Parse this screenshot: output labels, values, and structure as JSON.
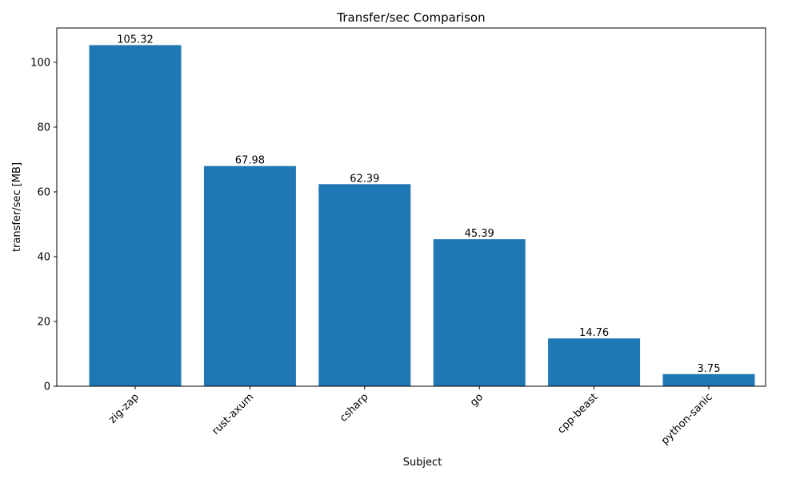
{
  "chart_data": {
    "type": "bar",
    "title": "Transfer/sec Comparison",
    "xlabel": "Subject",
    "ylabel": "transfer/sec [MB]",
    "categories": [
      "zig-zap",
      "rust-axum",
      "csharp",
      "go",
      "cpp-beast",
      "python-sanic"
    ],
    "values": [
      105.32,
      67.98,
      62.39,
      45.39,
      14.76,
      3.75
    ],
    "data_labels": [
      "105.32",
      "67.98",
      "62.39",
      "45.39",
      "14.76",
      "3.75"
    ],
    "ylim": [
      0,
      110.6
    ],
    "yticks": [
      0,
      20,
      40,
      60,
      80,
      100
    ],
    "grid": false,
    "bar_color": "#1f77b4",
    "xtick_rotation": 45
  }
}
